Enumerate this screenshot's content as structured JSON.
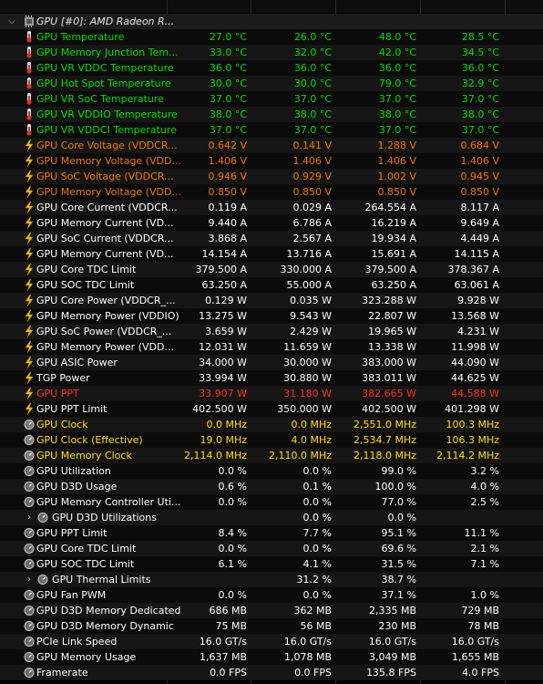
{
  "colors": {
    "green": "#00e000",
    "orange": "#f07800",
    "red": "#ff2a2a",
    "yellow": "#ffe000",
    "white": "#ffffff"
  },
  "rows": [
    {
      "kind": "header",
      "name": "GPU [#0]: AMD Radeon R...",
      "icon": "gpu-chip-icon",
      "expanded": true,
      "vals": [
        "",
        "",
        "",
        ""
      ]
    },
    {
      "name": "GPU Temperature",
      "icon": "thermometer-icon",
      "color": "green",
      "vals": [
        "27.0 °C",
        "26.0 °C",
        "48.0 °C",
        "28.5 °C"
      ]
    },
    {
      "name": "GPU Memory Junction Tem...",
      "icon": "thermometer-icon",
      "color": "green",
      "vals": [
        "33.0 °C",
        "32.0 °C",
        "42.0 °C",
        "34.5 °C"
      ]
    },
    {
      "name": "GPU VR VDDC Temperature",
      "icon": "thermometer-icon",
      "color": "green",
      "vals": [
        "36.0 °C",
        "36.0 °C",
        "36.0 °C",
        "36.0 °C"
      ]
    },
    {
      "name": "GPU Hot Spot Temperature",
      "icon": "thermometer-icon",
      "color": "green",
      "vals": [
        "30.0 °C",
        "30.0 °C",
        "79.0 °C",
        "32.9 °C"
      ]
    },
    {
      "name": "GPU VR SoC Temperature",
      "icon": "thermometer-icon",
      "color": "green",
      "vals": [
        "37.0 °C",
        "37.0 °C",
        "37.0 °C",
        "37.0 °C"
      ]
    },
    {
      "name": "GPU VR VDDIO Temperature",
      "icon": "thermometer-icon",
      "color": "green",
      "vals": [
        "38.0 °C",
        "38.0 °C",
        "38.0 °C",
        "38.0 °C"
      ]
    },
    {
      "name": "GPU VR VDDCI Temperature",
      "icon": "thermometer-icon",
      "color": "green",
      "vals": [
        "37.0 °C",
        "37.0 °C",
        "37.0 °C",
        "37.0 °C"
      ]
    },
    {
      "name": "GPU Core Voltage (VDDCR...",
      "icon": "lightning-icon",
      "color": "orange",
      "vals": [
        "0.642 V",
        "0.141 V",
        "1.288 V",
        "0.684 V"
      ]
    },
    {
      "name": "GPU Memory Voltage (VDD...",
      "icon": "lightning-icon",
      "color": "orange",
      "vals": [
        "1.406 V",
        "1.406 V",
        "1.406 V",
        "1.406 V"
      ]
    },
    {
      "name": "GPU SoC Voltage (VDDCR...",
      "icon": "lightning-icon",
      "color": "orange",
      "vals": [
        "0.946 V",
        "0.929 V",
        "1.002 V",
        "0.945 V"
      ]
    },
    {
      "name": "GPU Memory Voltage (VDD...",
      "icon": "lightning-icon",
      "color": "orange",
      "vals": [
        "0.850 V",
        "0.850 V",
        "0.850 V",
        "0.850 V"
      ]
    },
    {
      "name": "GPU Core Current (VDDCR...",
      "icon": "lightning-icon",
      "color": "white",
      "vals": [
        "0.119 A",
        "0.029 A",
        "264.554 A",
        "8.117 A"
      ]
    },
    {
      "name": "GPU Memory Current (VD...",
      "icon": "lightning-icon",
      "color": "white",
      "vals": [
        "9.440 A",
        "6.786 A",
        "16.219 A",
        "9.649 A"
      ]
    },
    {
      "name": "GPU SoC Current (VDDCR...",
      "icon": "lightning-icon",
      "color": "white",
      "vals": [
        "3.868 A",
        "2.567 A",
        "19.934 A",
        "4.449 A"
      ]
    },
    {
      "name": "GPU Memory Current (VD...",
      "icon": "lightning-icon",
      "color": "white",
      "vals": [
        "14.154 A",
        "13.716 A",
        "15.691 A",
        "14.115 A"
      ]
    },
    {
      "name": "GPU Core TDC Limit",
      "icon": "lightning-icon",
      "color": "white",
      "vals": [
        "379.500 A",
        "330.000 A",
        "379.500 A",
        "378.367 A"
      ]
    },
    {
      "name": "GPU SOC TDC Limit",
      "icon": "lightning-icon",
      "color": "white",
      "vals": [
        "63.250 A",
        "55.000 A",
        "63.250 A",
        "63.061 A"
      ]
    },
    {
      "name": "GPU Core Power (VDDCR_...",
      "icon": "lightning-icon",
      "color": "white",
      "vals": [
        "0.129 W",
        "0.035 W",
        "323.288 W",
        "9.928 W"
      ]
    },
    {
      "name": "GPU Memory Power (VDDIO)",
      "icon": "lightning-icon",
      "color": "white",
      "vals": [
        "13.275 W",
        "9.543 W",
        "22.807 W",
        "13.568 W"
      ]
    },
    {
      "name": "GPU SoC Power (VDDCR_...",
      "icon": "lightning-icon",
      "color": "white",
      "vals": [
        "3.659 W",
        "2.429 W",
        "19.965 W",
        "4.231 W"
      ]
    },
    {
      "name": "GPU Memory Power (VDD...",
      "icon": "lightning-icon",
      "color": "white",
      "vals": [
        "12.031 W",
        "11.659 W",
        "13.338 W",
        "11.998 W"
      ]
    },
    {
      "name": "GPU ASIC Power",
      "icon": "lightning-icon",
      "color": "white",
      "vals": [
        "34.000 W",
        "30.000 W",
        "383.000 W",
        "44.090 W"
      ]
    },
    {
      "name": "TGP Power",
      "icon": "lightning-icon",
      "color": "white",
      "vals": [
        "33.994 W",
        "30.880 W",
        "383.011 W",
        "44.625 W"
      ]
    },
    {
      "name": "GPU PPT",
      "icon": "lightning-icon",
      "color": "red",
      "vals": [
        "33.907 W",
        "31.180 W",
        "382.665 W",
        "44.588 W"
      ]
    },
    {
      "name": "GPU PPT Limit",
      "icon": "lightning-icon",
      "color": "white",
      "vals": [
        "402.500 W",
        "350.000 W",
        "402.500 W",
        "401.298 W"
      ]
    },
    {
      "name": "GPU Clock",
      "icon": "clock-gauge-icon",
      "color": "yellow",
      "vals": [
        "0.0 MHz",
        "0.0 MHz",
        "2,551.0 MHz",
        "100.3 MHz"
      ]
    },
    {
      "name": "GPU Clock (Effective)",
      "icon": "clock-gauge-icon",
      "color": "yellow",
      "vals": [
        "19.0 MHz",
        "4.0 MHz",
        "2,534.7 MHz",
        "106.3 MHz"
      ]
    },
    {
      "name": "GPU Memory Clock",
      "icon": "clock-gauge-icon",
      "color": "yellow",
      "vals": [
        "2,114.0 MHz",
        "2,110.0 MHz",
        "2,118.0 MHz",
        "2,114.2 MHz"
      ]
    },
    {
      "name": "GPU Utilization",
      "icon": "gauge-icon",
      "color": "white",
      "vals": [
        "0.0 %",
        "0.0 %",
        "99.0 %",
        "3.2 %"
      ]
    },
    {
      "name": "GPU D3D Usage",
      "icon": "gauge-icon",
      "color": "white",
      "vals": [
        "0.6 %",
        "0.1 %",
        "100.0 %",
        "4.0 %"
      ]
    },
    {
      "name": "GPU Memory Controller Uti...",
      "icon": "gauge-icon",
      "color": "white",
      "vals": [
        "0.0 %",
        "0.0 %",
        "77.0 %",
        "2.5 %"
      ]
    },
    {
      "kind": "group",
      "name": "GPU D3D Utilizations",
      "icon": "gauge-icon",
      "color": "white",
      "vals": [
        "",
        "0.0 %",
        "0.0 %",
        ""
      ]
    },
    {
      "name": "GPU PPT Limit",
      "icon": "gauge-icon",
      "color": "white",
      "vals": [
        "8.4 %",
        "7.7 %",
        "95.1 %",
        "11.1 %"
      ]
    },
    {
      "name": "GPU Core TDC Limit",
      "icon": "gauge-icon",
      "color": "white",
      "vals": [
        "0.0 %",
        "0.0 %",
        "69.6 %",
        "2.1 %"
      ]
    },
    {
      "name": "GPU SOC TDC Limit",
      "icon": "gauge-icon",
      "color": "white",
      "vals": [
        "6.1 %",
        "4.1 %",
        "31.5 %",
        "7.1 %"
      ]
    },
    {
      "kind": "group",
      "name": "GPU Thermal Limits",
      "icon": "gauge-icon",
      "color": "white",
      "vals": [
        "",
        "31.2 %",
        "38.7 %",
        ""
      ]
    },
    {
      "name": "GPU Fan PWM",
      "icon": "gauge-icon",
      "color": "white",
      "vals": [
        "0.0 %",
        "0.0 %",
        "37.1 %",
        "1.0 %"
      ]
    },
    {
      "name": "GPU D3D Memory Dedicated",
      "icon": "gauge-icon",
      "color": "white",
      "vals": [
        "686 MB",
        "362 MB",
        "2,335 MB",
        "729 MB"
      ]
    },
    {
      "name": "GPU D3D Memory Dynamic",
      "icon": "gauge-icon",
      "color": "white",
      "vals": [
        "75 MB",
        "56 MB",
        "230 MB",
        "78 MB"
      ]
    },
    {
      "name": "PCIe Link Speed",
      "icon": "gauge-icon",
      "color": "white",
      "vals": [
        "16.0 GT/s",
        "16.0 GT/s",
        "16.0 GT/s",
        "16.0 GT/s"
      ]
    },
    {
      "name": "GPU Memory Usage",
      "icon": "gauge-icon",
      "color": "white",
      "vals": [
        "1,637 MB",
        "1,078 MB",
        "3,049 MB",
        "1,655 MB"
      ]
    },
    {
      "name": "Framerate",
      "icon": "gauge-icon",
      "color": "white",
      "vals": [
        "0.0 FPS",
        "0.0 FPS",
        "135.8 FPS",
        "4.0 FPS"
      ]
    }
  ]
}
